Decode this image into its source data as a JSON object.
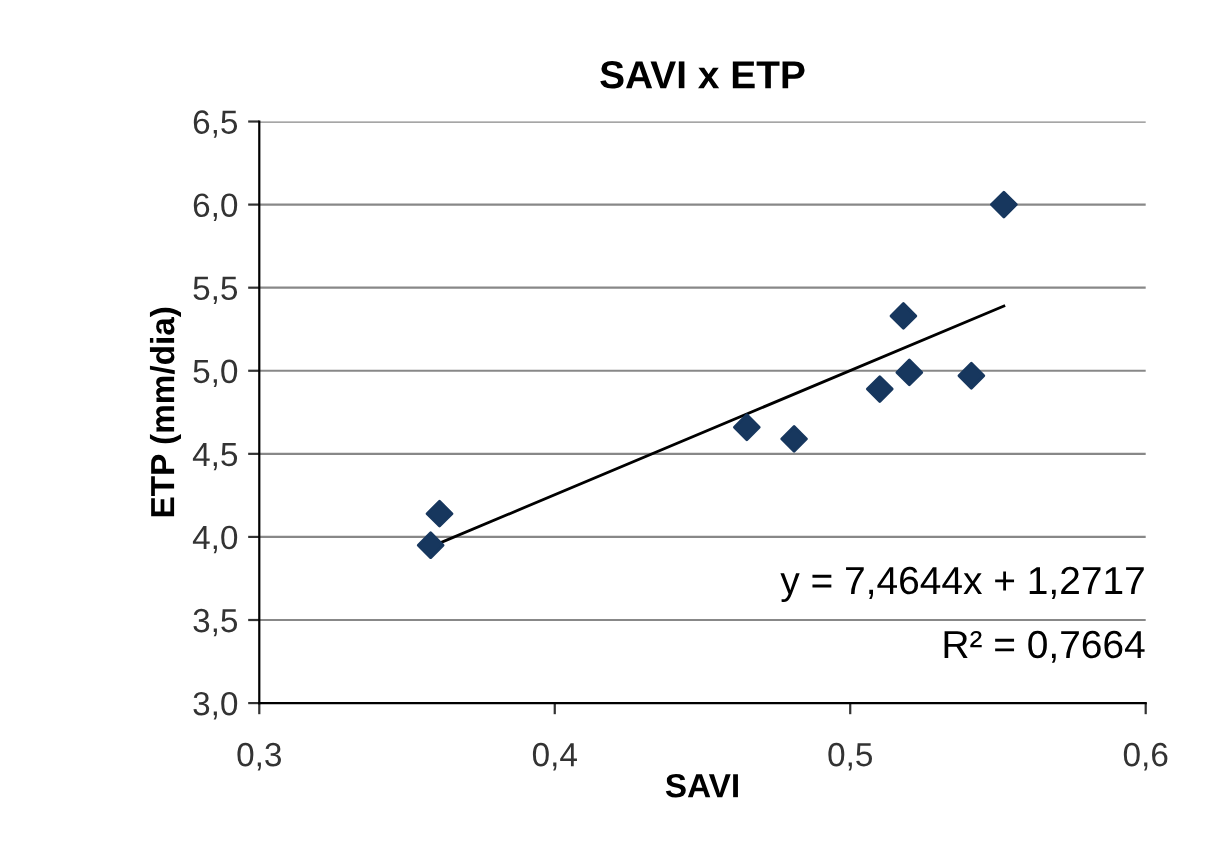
{
  "chart_data": {
    "type": "scatter",
    "title": "SAVI x ETP",
    "xlabel": "SAVI",
    "ylabel": "ETP (mm/dia)",
    "marker": "diamond",
    "grid": "y",
    "legend": false,
    "xlim": [
      0.3,
      0.6
    ],
    "ylim": [
      3.0,
      6.5
    ],
    "xticks": [
      {
        "value": 0.3,
        "label": "0,3"
      },
      {
        "value": 0.4,
        "label": "0,4"
      },
      {
        "value": 0.5,
        "label": "0,5"
      },
      {
        "value": 0.6,
        "label": "0,6"
      }
    ],
    "yticks": [
      {
        "value": 3.0,
        "label": "3,0"
      },
      {
        "value": 3.5,
        "label": "3,5"
      },
      {
        "value": 4.0,
        "label": "4,0"
      },
      {
        "value": 4.5,
        "label": "4,5"
      },
      {
        "value": 5.0,
        "label": "5,0"
      },
      {
        "value": 5.5,
        "label": "5,5"
      },
      {
        "value": 6.0,
        "label": "6,0"
      },
      {
        "value": 6.5,
        "label": "6,5"
      }
    ],
    "series": [
      {
        "color": "#17375e",
        "x": [
          0.358,
          0.361,
          0.465,
          0.481,
          0.51,
          0.518,
          0.52,
          0.541,
          0.552
        ],
        "values": [
          3.95,
          4.14,
          4.66,
          4.59,
          4.89,
          5.33,
          4.99,
          4.97,
          6.0
        ]
      },
      {
        "type": "line",
        "color": "#000000",
        "marker": "none",
        "x": [
          0.358,
          0.552
        ],
        "values": [
          3.94,
          5.39
        ]
      }
    ],
    "annotations": [
      "y = 7,4644x + 1,2717",
      "R² = 0,7664"
    ]
  }
}
